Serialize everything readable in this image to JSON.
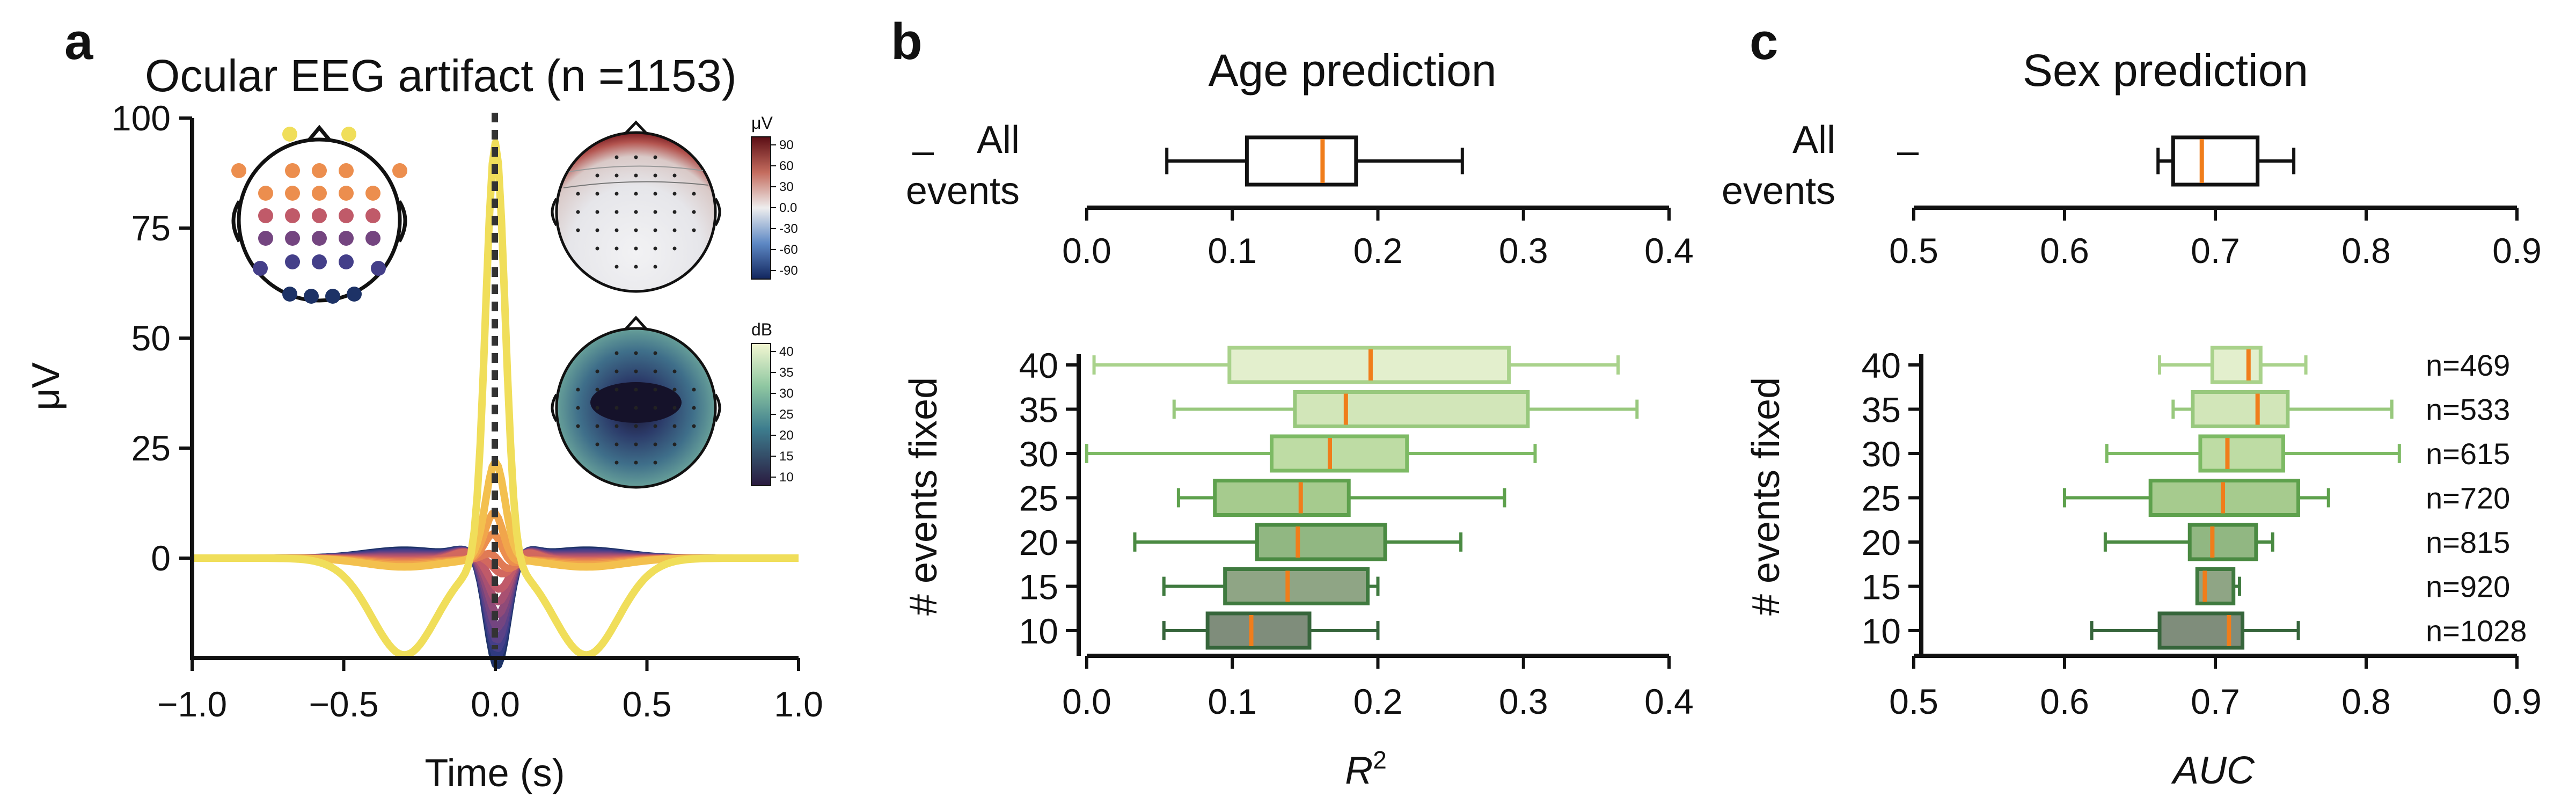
{
  "chart_data": [
    {
      "panel": "a",
      "type": "line",
      "title": "Ocular EEG  artifact (n =1153)",
      "xlabel": "Time (s)",
      "ylabel": "μV",
      "xlim": [
        -1.0,
        1.0
      ],
      "ylim": [
        -15,
        100
      ],
      "xticks": [
        "−1.0",
        "−0.5",
        "0.0",
        "0.5",
        "1.0"
      ],
      "yticks": [
        "0",
        "25",
        "50",
        "75",
        "100"
      ],
      "grid": false,
      "vline_x": 0.0,
      "series_description": "14 channel-averaged evoked traces colored by sensor position (frontal=yellow to occipital=dark blue)",
      "series": [
        {
          "color": "#f0de5a",
          "peak": 95,
          "trough": -16,
          "side": -8
        },
        {
          "color": "#f3c04e",
          "peak": 22,
          "trough": -6,
          "side": -2
        },
        {
          "color": "#f1a54b",
          "peak": 17,
          "trough": -7,
          "side": -1.6
        },
        {
          "color": "#ec8e4e",
          "peak": 13,
          "trough": -8,
          "side": -1.2
        },
        {
          "color": "#e07a55",
          "peak": 9,
          "trough": -9,
          "side": -0.9
        },
        {
          "color": "#d2685e",
          "peak": 6,
          "trough": -9,
          "side": -0.6
        },
        {
          "color": "#c05a69",
          "peak": 3,
          "trough": -10,
          "side": -0.3
        },
        {
          "color": "#a85071",
          "peak": 1,
          "trough": -11,
          "side": 0.0
        },
        {
          "color": "#8f4a78",
          "peak": -1,
          "trough": -12,
          "side": 0.3
        },
        {
          "color": "#744580",
          "peak": -3,
          "trough": -13,
          "side": 0.6
        },
        {
          "color": "#5b4287",
          "peak": -5,
          "trough": -14,
          "side": 0.9
        },
        {
          "color": "#443f89",
          "peak": -6,
          "trough": -15,
          "side": 1.2
        },
        {
          "color": "#2f3a80",
          "peak": -7,
          "trough": -16,
          "side": 1.5
        },
        {
          "color": "#1d3266",
          "peak": -8,
          "trough": -17,
          "side": 1.8
        }
      ],
      "insets": {
        "sensor_colors": [
          "#f0de5a",
          "#ec8e4e",
          "#c05a69",
          "#744580",
          "#443f89",
          "#1d3266"
        ],
        "topomap_top": {
          "unit": "μV",
          "cbar_ticks": [
            "90",
            "60",
            "30",
            "0.0",
            "-30",
            "-60",
            "-90"
          ]
        },
        "topomap_bottom": {
          "unit": "dB",
          "cbar_ticks": [
            "40",
            "35",
            "30",
            "25",
            "20",
            "15",
            "10"
          ]
        }
      }
    },
    {
      "panel": "b",
      "type": "box",
      "title": "Age prediction",
      "xlabel": "R",
      "xlabel_sup": "2",
      "ylabel": "# events fixed",
      "xlim": [
        0.0,
        0.4
      ],
      "xticks": [
        "0.0",
        "0.1",
        "0.2",
        "0.3",
        "0.4"
      ],
      "top_label_1": "All",
      "top_label_2": "events",
      "top_tick": "–",
      "all_events": {
        "whislo": 0.055,
        "q1": 0.11,
        "med": 0.162,
        "q3": 0.185,
        "whishi": 0.258
      },
      "categories": [
        "40",
        "35",
        "30",
        "25",
        "20",
        "15",
        "10"
      ],
      "boxes": [
        {
          "whislo": 0.005,
          "q1": 0.098,
          "med": 0.195,
          "q3": 0.29,
          "whishi": 0.365
        },
        {
          "whislo": 0.06,
          "q1": 0.143,
          "med": 0.178,
          "q3": 0.303,
          "whishi": 0.378
        },
        {
          "whislo": 0.0,
          "q1": 0.127,
          "med": 0.167,
          "q3": 0.22,
          "whishi": 0.308
        },
        {
          "whislo": 0.063,
          "q1": 0.088,
          "med": 0.147,
          "q3": 0.18,
          "whishi": 0.287
        },
        {
          "whislo": 0.033,
          "q1": 0.117,
          "med": 0.145,
          "q3": 0.205,
          "whishi": 0.257
        },
        {
          "whislo": 0.053,
          "q1": 0.095,
          "med": 0.138,
          "q3": 0.193,
          "whishi": 0.2
        },
        {
          "whislo": 0.053,
          "q1": 0.083,
          "med": 0.113,
          "q3": 0.153,
          "whishi": 0.2
        }
      ]
    },
    {
      "panel": "c",
      "type": "box",
      "title": "Sex prediction",
      "xlabel": "AUC",
      "ylabel": "# events fixed",
      "xlim": [
        0.5,
        0.9
      ],
      "xticks": [
        "0.5",
        "0.6",
        "0.7",
        "0.8",
        "0.9"
      ],
      "top_label_1": "All",
      "top_label_2": "events",
      "top_tick": "–",
      "all_events": {
        "whislo": 0.662,
        "q1": 0.672,
        "med": 0.691,
        "q3": 0.728,
        "whishi": 0.752
      },
      "categories": [
        "40",
        "35",
        "30",
        "25",
        "20",
        "15",
        "10"
      ],
      "counts": [
        "n=469",
        "n=533",
        "n=615",
        "n=720",
        "n=815",
        "n=920",
        "n=1028"
      ],
      "boxes": [
        {
          "whislo": 0.663,
          "q1": 0.698,
          "med": 0.722,
          "q3": 0.73,
          "whishi": 0.76
        },
        {
          "whislo": 0.672,
          "q1": 0.685,
          "med": 0.728,
          "q3": 0.748,
          "whishi": 0.817
        },
        {
          "whislo": 0.628,
          "q1": 0.69,
          "med": 0.708,
          "q3": 0.745,
          "whishi": 0.822
        },
        {
          "whislo": 0.6,
          "q1": 0.657,
          "med": 0.705,
          "q3": 0.755,
          "whishi": 0.775
        },
        {
          "whislo": 0.627,
          "q1": 0.683,
          "med": 0.698,
          "q3": 0.727,
          "whishi": 0.738
        },
        {
          "whislo": 0.688,
          "q1": 0.688,
          "med": 0.693,
          "q3": 0.712,
          "whishi": 0.716
        },
        {
          "whislo": 0.618,
          "q1": 0.663,
          "med": 0.709,
          "q3": 0.718,
          "whishi": 0.755
        }
      ]
    }
  ],
  "colors": {
    "box_fill": [
      "#e3efcd",
      "#d2e6b9",
      "#bedca4",
      "#a6cb8e",
      "#91b782",
      "#8fa585",
      "#7f8d7b"
    ],
    "box_edge": [
      "#a9d28b",
      "#98c87d",
      "#7dba64",
      "#5ea14d",
      "#4a8a42",
      "#3f7a3f",
      "#36653b"
    ],
    "median": "#f07d1b"
  }
}
